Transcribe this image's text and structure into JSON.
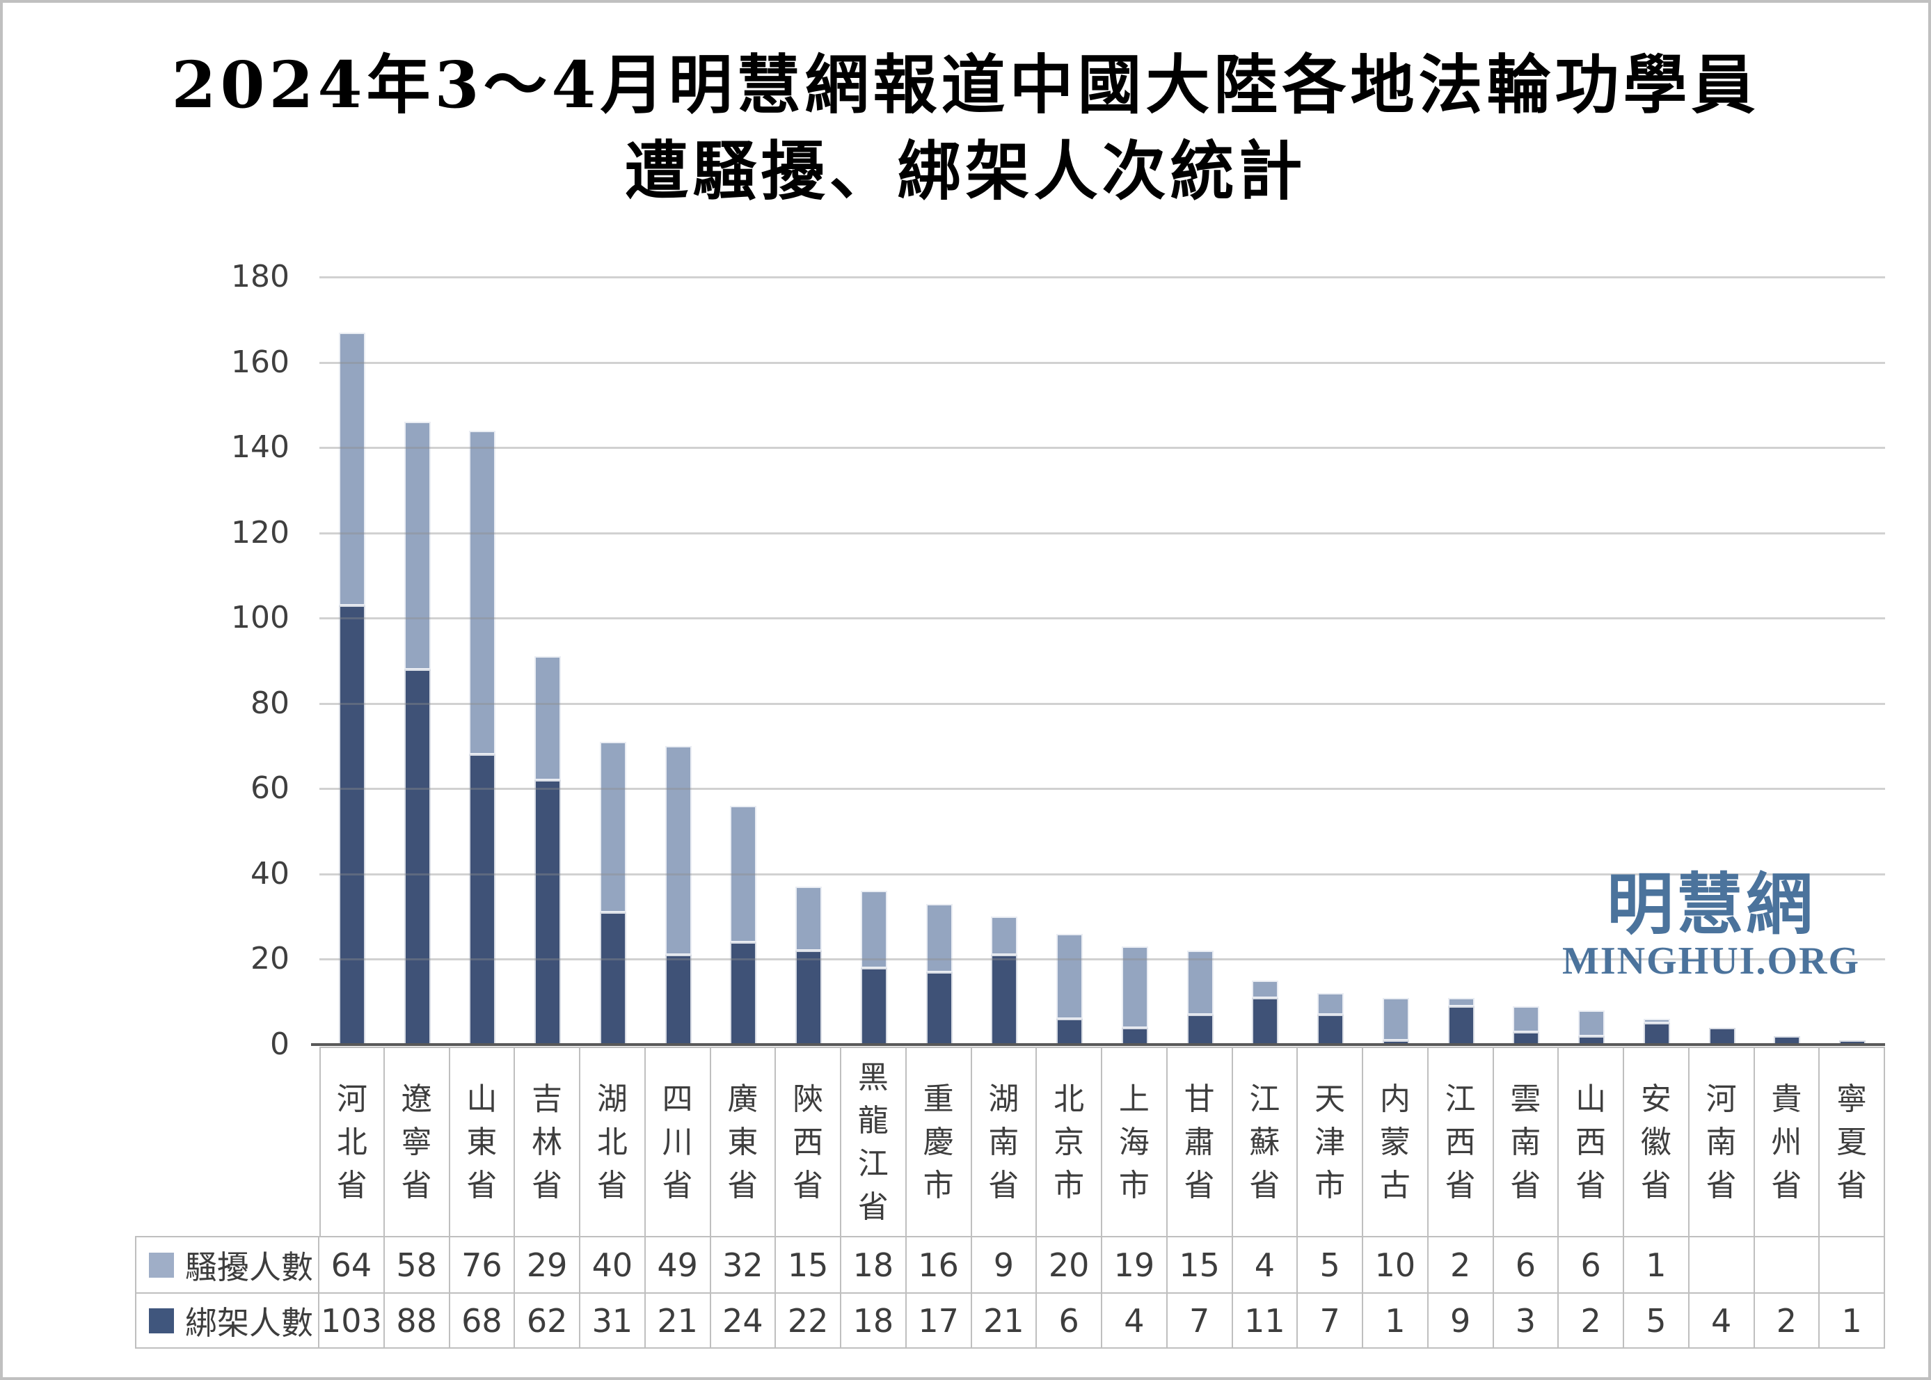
{
  "title": {
    "line1": "2024年3～4月明慧網報道中國大陸各地法輪功學員",
    "line2": "遭騷擾、綁架人次統計"
  },
  "watermark": {
    "cjk": "明慧網",
    "latin": "MINGHUI.ORG"
  },
  "chart_data": {
    "type": "bar",
    "stacked": true,
    "title": "2024年3～4月明慧網報道中國大陸各地法輪功學員遭騷擾、綁架人次統計",
    "categories": [
      "河北省",
      "遼寧省",
      "山東省",
      "吉林省",
      "湖北省",
      "四川省",
      "廣東省",
      "陝西省",
      "黑龍江省",
      "重慶市",
      "湖南省",
      "北京市",
      "上海市",
      "甘肅省",
      "江蘇省",
      "天津市",
      "内蒙古",
      "江西省",
      "雲南省",
      "山西省",
      "安徽省",
      "河南省",
      "貴州省",
      "寧夏省"
    ],
    "series": [
      {
        "name": "騷擾人數",
        "color": "#94a5c0",
        "legend_color": "#9faec7",
        "stack_order": "top",
        "values": [
          64,
          58,
          76,
          29,
          40,
          49,
          32,
          15,
          18,
          16,
          9,
          20,
          19,
          15,
          4,
          5,
          10,
          2,
          6,
          6,
          1,
          null,
          null,
          null
        ]
      },
      {
        "name": "綁架人數",
        "color": "#3f5277",
        "legend_color": "#40567d",
        "stack_order": "bottom",
        "values": [
          103,
          88,
          68,
          62,
          31,
          21,
          24,
          22,
          18,
          17,
          21,
          6,
          4,
          7,
          11,
          7,
          1,
          9,
          3,
          2,
          5,
          4,
          2,
          1
        ]
      }
    ],
    "ylim": [
      0,
      180
    ],
    "ytick_step": 20,
    "yticks": [
      "180",
      "160",
      "140",
      "120",
      "100",
      "80",
      "60",
      "40",
      "20",
      "0"
    ],
    "grid": true,
    "gridlines_over_bars": true,
    "legend_position": "table-left"
  }
}
